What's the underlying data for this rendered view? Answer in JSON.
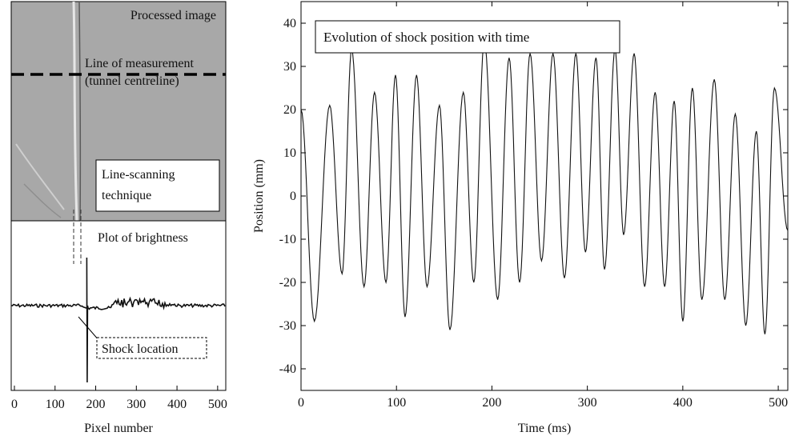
{
  "left_panel": {
    "image_title": "Processed image",
    "measurement_label_line1": "Line of measurement",
    "measurement_label_line2": "(tunnel centreline)",
    "technique_label_line1": "Line-scanning",
    "technique_label_line2": "technique",
    "brightness_title": "Plot of brightness",
    "shock_label": "Shock location",
    "colors": {
      "image_bg": "#a9a9a9",
      "frame": "#000000",
      "trace": "#111111"
    }
  },
  "chart_data": [
    {
      "type": "line",
      "title": "Plot of brightness",
      "xlabel": "Pixel number",
      "ylabel": "",
      "xlim": [
        0,
        520
      ],
      "xticks": [
        0,
        100,
        200,
        300,
        400,
        500
      ],
      "yticks": [],
      "grid": false,
      "shock_pixel": 178,
      "annotation": "Shock location"
    },
    {
      "type": "line",
      "title": "",
      "xlabel": "Time (ms)",
      "ylabel": "Position (mm)",
      "xlim": [
        0,
        510
      ],
      "ylim": [
        -45,
        45
      ],
      "xticks": [
        0,
        100,
        200,
        300,
        400,
        500
      ],
      "yticks": [
        -40,
        -30,
        -20,
        -10,
        0,
        10,
        20,
        30,
        40
      ],
      "grid": false,
      "legend": {
        "placement": "top-left",
        "label": "Evolution of shock position with time"
      },
      "series": [
        {
          "values": [
            [
              0,
              20
            ],
            [
              14,
              -29
            ],
            [
              30,
              21
            ],
            [
              43,
              -18
            ],
            [
              53,
              34
            ],
            [
              66,
              -21
            ],
            [
              77,
              24
            ],
            [
              89,
              -20
            ],
            [
              99,
              28
            ],
            [
              109,
              -28
            ],
            [
              121,
              28
            ],
            [
              132,
              -21
            ],
            [
              145,
              21
            ],
            [
              156,
              -31
            ],
            [
              170,
              24
            ],
            [
              181,
              -20
            ],
            [
              192,
              36
            ],
            [
              206,
              -24
            ],
            [
              218,
              32
            ],
            [
              229,
              -20
            ],
            [
              240,
              33
            ],
            [
              252,
              -15
            ],
            [
              264,
              33
            ],
            [
              276,
              -19
            ],
            [
              288,
              33
            ],
            [
              298,
              -13
            ],
            [
              309,
              32
            ],
            [
              318,
              -17
            ],
            [
              329,
              34
            ],
            [
              338,
              -9
            ],
            [
              349,
              33
            ],
            [
              360,
              -21
            ],
            [
              371,
              24
            ],
            [
              381,
              -21
            ],
            [
              391,
              22
            ],
            [
              400,
              -29
            ],
            [
              410,
              25
            ],
            [
              420,
              -24
            ],
            [
              433,
              27
            ],
            [
              444,
              -24
            ],
            [
              455,
              19
            ],
            [
              466,
              -30
            ],
            [
              477,
              15
            ],
            [
              486,
              -32
            ],
            [
              496,
              25
            ],
            [
              510,
              -8
            ]
          ]
        }
      ]
    }
  ]
}
